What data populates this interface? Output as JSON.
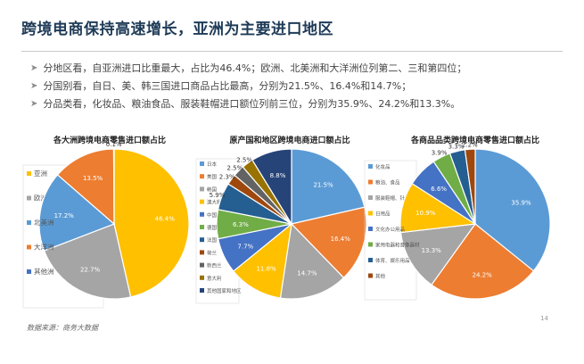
{
  "slide": {
    "title": "跨境电商保持高速增长，亚洲为主要进口地区",
    "bullets": [
      "分地区看，自亚洲进口比重最大，占比为46.4%；欧洲、北美洲和大洋洲位列第二、三和第四位；",
      "分国别看，自日、美、韩三国进口商品占比最高，分别为21.5%、16.4%和14.7%；",
      "分品类看，化妆品、粮油食品、服装鞋帽进口额位列前三位，分别为35.9%、24.2%和13.3%。"
    ],
    "source": "数据来源：商务大数据",
    "page_number": "14"
  },
  "chart_data": [
    {
      "type": "pie",
      "title": "各大洲跨境电商零售进口额占比",
      "legend_position": "left",
      "slices": [
        {
          "label": "亚洲",
          "value": 46.4,
          "color": "#ffc000"
        },
        {
          "label": "欧洲",
          "value": 22.7,
          "color": "#a5a5a5"
        },
        {
          "label": "北美洲",
          "value": 17.2,
          "color": "#5b9bd5"
        },
        {
          "label": "大洋洲",
          "value": 13.5,
          "color": "#ed7d31"
        },
        {
          "label": "其他洲",
          "value": 0.1,
          "color": "#4472c4"
        }
      ],
      "data_labels": [
        "46.4%",
        "22.7%",
        "17.2%",
        "13.5%",
        "0.1%"
      ]
    },
    {
      "type": "pie",
      "title": "原产国和地区跨境电商进口额占比",
      "legend_position": "left",
      "slices": [
        {
          "label": "日本",
          "value": 21.5,
          "color": "#5b9bd5"
        },
        {
          "label": "美国",
          "value": 16.4,
          "color": "#ed7d31"
        },
        {
          "label": "韩国",
          "value": 14.7,
          "color": "#a5a5a5"
        },
        {
          "label": "澳大利亚",
          "value": 11.8,
          "color": "#ffc000"
        },
        {
          "label": "中国",
          "value": 7.7,
          "color": "#4472c4"
        },
        {
          "label": "德国",
          "value": 6.3,
          "color": "#70ad47"
        },
        {
          "label": "法国",
          "value": 5.9,
          "color": "#255e91"
        },
        {
          "label": "荷兰",
          "value": 2.3,
          "color": "#9e480e"
        },
        {
          "label": "新西兰",
          "value": 2.5,
          "color": "#636363"
        },
        {
          "label": "意大利",
          "value": 2.5,
          "color": "#997300"
        },
        {
          "label": "其他国家和地区",
          "value": 8.8,
          "color": "#264478"
        }
      ],
      "data_labels": [
        "21.5%",
        "16.4%",
        "14.7%",
        "11.8%",
        "7.7%",
        "6.3%",
        "5.9%",
        "2.3%",
        "2.5%",
        "2.5%",
        "8.8%"
      ]
    },
    {
      "type": "pie",
      "title": "各商品品类跨境电商零售进口额占比",
      "legend_position": "left",
      "slices": [
        {
          "label": "化妆品",
          "value": 35.9,
          "color": "#5b9bd5"
        },
        {
          "label": "粮油、食品",
          "value": 24.2,
          "color": "#ed7d31"
        },
        {
          "label": "服装鞋帽、针纺织品",
          "value": 13.3,
          "color": "#a5a5a5"
        },
        {
          "label": "日用品",
          "value": 10.9,
          "color": "#ffc000"
        },
        {
          "label": "文化办公用品",
          "value": 6.6,
          "color": "#4472c4"
        },
        {
          "label": "家用电器和音像器材",
          "value": 3.9,
          "color": "#70ad47"
        },
        {
          "label": "体育、娱乐用品",
          "value": 3.3,
          "color": "#255e91"
        },
        {
          "label": "其他",
          "value": 2.2,
          "color": "#9e480e"
        }
      ],
      "data_labels": [
        "35.9%",
        "24.2%",
        "13.3%",
        "10.9%",
        "6.6%",
        "3.9%",
        "3.3%",
        "2.2%"
      ]
    }
  ]
}
